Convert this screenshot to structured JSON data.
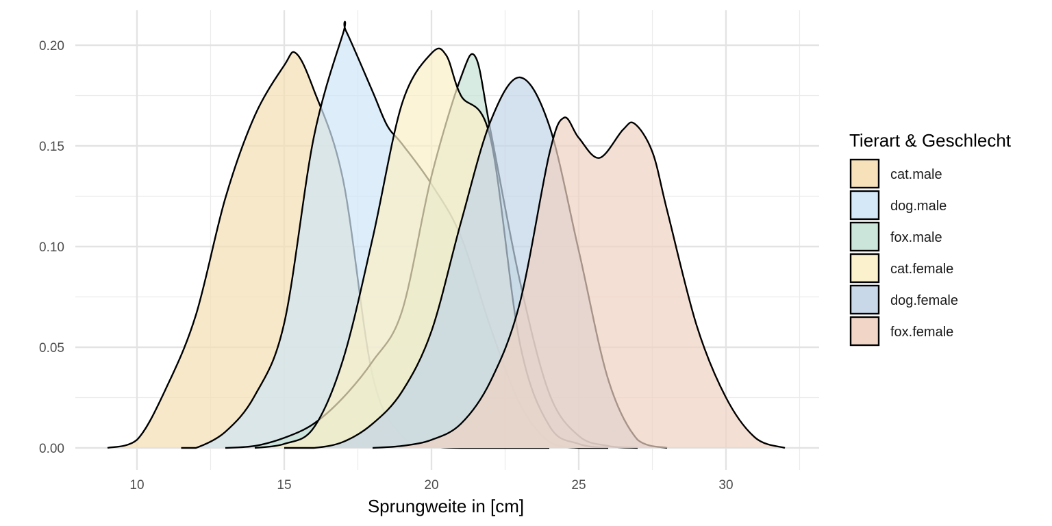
{
  "chart_data": {
    "type": "area",
    "xlabel": "Sprungweite in [cm]",
    "ylabel": "",
    "xlim": [
      8.5,
      32.5
    ],
    "ylim": [
      0,
      0.21
    ],
    "x_ticks": [
      10,
      15,
      20,
      25,
      30
    ],
    "x_tick_labels": [
      "10",
      "15",
      "20",
      "25",
      "30"
    ],
    "y_ticks": [
      0.0,
      0.05,
      0.1,
      0.15,
      0.2
    ],
    "y_tick_labels": [
      "0.00",
      "0.05",
      "0.10",
      "0.15",
      "0.20"
    ],
    "grid": true,
    "legend": {
      "title": "Tierart & Geschlecht",
      "position": "right"
    },
    "series": [
      {
        "name": "cat.male",
        "color": "#f5deb3",
        "x": [
          9.0,
          10.0,
          11.0,
          12.0,
          13.0,
          14.0,
          15.0,
          15.4,
          16.0,
          17.0,
          18.0,
          19.0,
          20.0,
          21.0,
          22.0,
          23.0,
          24.0
        ],
        "y": [
          0.0,
          0.004,
          0.03,
          0.066,
          0.124,
          0.165,
          0.19,
          0.196,
          0.178,
          0.133,
          0.036,
          0.006,
          0.001,
          0.0,
          0.0,
          0.0,
          0.0
        ]
      },
      {
        "name": "dog.male",
        "color": "#cfe6f6",
        "x": [
          11.5,
          12.0,
          13.0,
          14.0,
          15.0,
          16.0,
          17.0,
          17.1,
          18.0,
          18.5,
          19.0,
          20.0,
          21.0,
          22.0,
          23.0,
          24.0,
          25.0,
          26.0
        ],
        "y": [
          0.0,
          0.0,
          0.008,
          0.026,
          0.062,
          0.154,
          0.206,
          0.207,
          0.177,
          0.16,
          0.151,
          0.131,
          0.105,
          0.06,
          0.022,
          0.003,
          0.0,
          0.0
        ]
      },
      {
        "name": "fox.male",
        "color": "#c6e2d7",
        "x": [
          13.0,
          14.0,
          15.0,
          16.0,
          17.0,
          18.0,
          19.0,
          20.0,
          21.0,
          21.5,
          22.0,
          23.0,
          24.0,
          25.0,
          26.0,
          27.0
        ],
        "y": [
          0.0,
          0.001,
          0.005,
          0.012,
          0.025,
          0.043,
          0.068,
          0.135,
          0.184,
          0.194,
          0.158,
          0.083,
          0.027,
          0.006,
          0.001,
          0.0
        ]
      },
      {
        "name": "cat.female",
        "color": "#fbefc6",
        "x": [
          14.0,
          15.0,
          16.0,
          17.0,
          18.0,
          19.0,
          20.0,
          20.5,
          21.0,
          22.0,
          23.0,
          24.0,
          25.0,
          26.0
        ],
        "y": [
          0.0,
          0.002,
          0.01,
          0.044,
          0.104,
          0.171,
          0.196,
          0.195,
          0.175,
          0.154,
          0.052,
          0.011,
          0.002,
          0.0
        ]
      },
      {
        "name": "dog.female",
        "color": "#c2d4e7",
        "x": [
          15.0,
          16.0,
          17.0,
          18.0,
          19.0,
          20.0,
          21.0,
          22.0,
          23.0,
          24.0,
          25.0,
          26.0,
          27.0,
          28.0
        ],
        "y": [
          0.0,
          0.0,
          0.003,
          0.012,
          0.028,
          0.058,
          0.112,
          0.162,
          0.184,
          0.16,
          0.098,
          0.034,
          0.004,
          0.0
        ]
      },
      {
        "name": "fox.female",
        "color": "#f0d1c2",
        "x": [
          18.0,
          19.0,
          20.0,
          21.0,
          22.0,
          23.0,
          24.0,
          24.5,
          25.0,
          25.7,
          26.5,
          26.9,
          27.5,
          28.0,
          29.0,
          30.0,
          31.0,
          32.0
        ],
        "y": [
          0.0,
          0.001,
          0.004,
          0.012,
          0.033,
          0.072,
          0.146,
          0.164,
          0.154,
          0.144,
          0.158,
          0.161,
          0.147,
          0.118,
          0.061,
          0.025,
          0.005,
          0.0
        ]
      }
    ]
  }
}
